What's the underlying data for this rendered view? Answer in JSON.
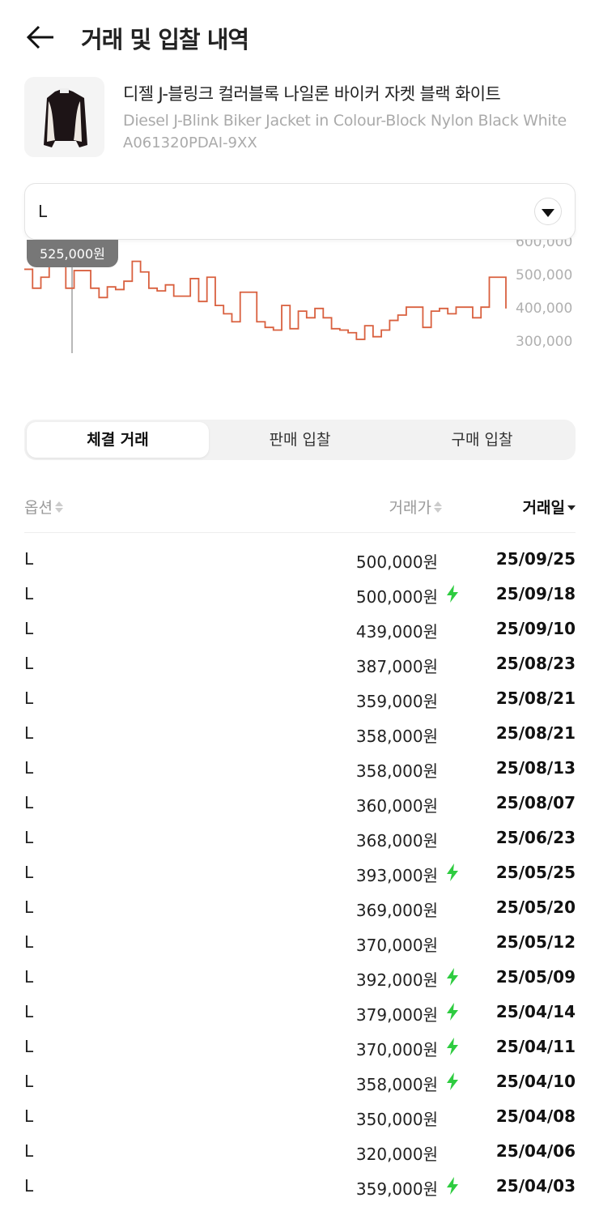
{
  "header": {
    "title": "거래 및 입찰 내역",
    "back_icon": "arrow-left-icon"
  },
  "product": {
    "name_ko": "디젤 J-블링크 컬러블록 나일론 바이커 자켓 블랙 화이트",
    "name_en": "Diesel J-Blink Biker Jacket in Colour-Block Nylon Black White",
    "code": "A061320PDAI-9XX"
  },
  "size_select": {
    "value": "L"
  },
  "chart_data": {
    "type": "line",
    "color": "#d9603f",
    "y_ticks": [
      "600,000",
      "500,000",
      "400,000",
      "300,000"
    ],
    "ylim": [
      290000,
      610000
    ],
    "tooltip": "525,000원",
    "values": [
      516000,
      459000,
      492000,
      525000,
      540000,
      459000,
      512000,
      512000,
      459000,
      431000,
      463000,
      455000,
      480000,
      540000,
      508000,
      459000,
      451000,
      469000,
      435000,
      435000,
      488000,
      419000,
      492000,
      407000,
      382000,
      358000,
      447000,
      447000,
      358000,
      341000,
      333000,
      407000,
      337000,
      390000,
      370000,
      398000,
      370000,
      337000,
      333000,
      325000,
      305000,
      346000,
      313000,
      333000,
      362000,
      378000,
      402000,
      402000,
      341000,
      390000,
      398000,
      382000,
      402000,
      402000,
      370000,
      402000,
      492000,
      492000,
      398000
    ]
  },
  "tabs": [
    {
      "label": "체결 거래",
      "active": true
    },
    {
      "label": "판매 입찰"
    },
    {
      "label": "구매 입찰"
    }
  ],
  "table": {
    "headers": {
      "option": "옵션",
      "price": "거래가",
      "date": "거래일"
    },
    "rows": [
      {
        "option": "L",
        "price": "500,000원",
        "quick": false,
        "date": "25/09/25"
      },
      {
        "option": "L",
        "price": "500,000원",
        "quick": true,
        "date": "25/09/18"
      },
      {
        "option": "L",
        "price": "439,000원",
        "quick": false,
        "date": "25/09/10"
      },
      {
        "option": "L",
        "price": "387,000원",
        "quick": false,
        "date": "25/08/23"
      },
      {
        "option": "L",
        "price": "359,000원",
        "quick": false,
        "date": "25/08/21"
      },
      {
        "option": "L",
        "price": "358,000원",
        "quick": false,
        "date": "25/08/21"
      },
      {
        "option": "L",
        "price": "358,000원",
        "quick": false,
        "date": "25/08/13"
      },
      {
        "option": "L",
        "price": "360,000원",
        "quick": false,
        "date": "25/08/07"
      },
      {
        "option": "L",
        "price": "368,000원",
        "quick": false,
        "date": "25/06/23"
      },
      {
        "option": "L",
        "price": "393,000원",
        "quick": true,
        "date": "25/05/25"
      },
      {
        "option": "L",
        "price": "369,000원",
        "quick": false,
        "date": "25/05/20"
      },
      {
        "option": "L",
        "price": "370,000원",
        "quick": false,
        "date": "25/05/12"
      },
      {
        "option": "L",
        "price": "392,000원",
        "quick": true,
        "date": "25/05/09"
      },
      {
        "option": "L",
        "price": "379,000원",
        "quick": true,
        "date": "25/04/14"
      },
      {
        "option": "L",
        "price": "370,000원",
        "quick": true,
        "date": "25/04/11"
      },
      {
        "option": "L",
        "price": "358,000원",
        "quick": true,
        "date": "25/04/10"
      },
      {
        "option": "L",
        "price": "350,000원",
        "quick": false,
        "date": "25/04/08"
      },
      {
        "option": "L",
        "price": "320,000원",
        "quick": false,
        "date": "25/04/06"
      },
      {
        "option": "L",
        "price": "359,000원",
        "quick": true,
        "date": "25/04/03"
      }
    ]
  }
}
